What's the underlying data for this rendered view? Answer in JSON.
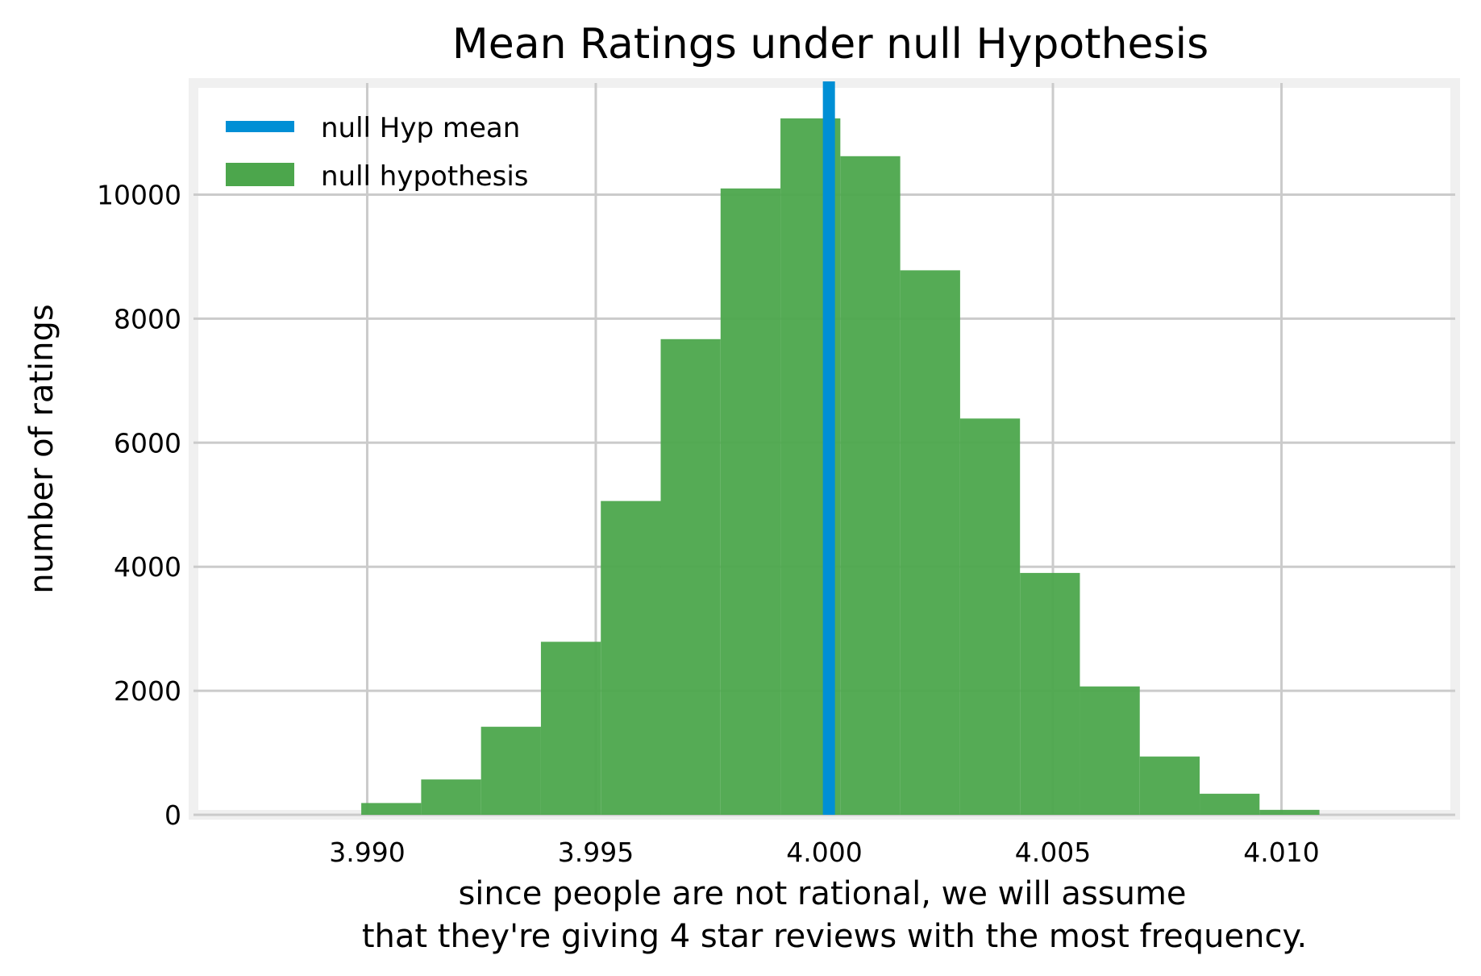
{
  "chart_data": {
    "type": "bar",
    "title": "Mean Ratings under null Hypothesis",
    "xlabel_lines": [
      "since people are not rational, we will assume",
      "that they're giving 4 star reviews with the most frequency."
    ],
    "ylabel": "number of ratings",
    "xlim": [
      3.9862,
      4.0138
    ],
    "ylim": [
      0,
      11800
    ],
    "x_ticks": [
      {
        "value": 3.99,
        "label": "3.990"
      },
      {
        "value": 3.995,
        "label": "3.995"
      },
      {
        "value": 4.0,
        "label": "4.000"
      },
      {
        "value": 4.005,
        "label": "4.005"
      },
      {
        "value": 4.01,
        "label": "4.010"
      }
    ],
    "y_ticks": [
      {
        "value": 0,
        "label": "0"
      },
      {
        "value": 2000,
        "label": "2000"
      },
      {
        "value": 4000,
        "label": "4000"
      },
      {
        "value": 6000,
        "label": "6000"
      },
      {
        "value": 8000,
        "label": "8000"
      },
      {
        "value": 10000,
        "label": "10000"
      }
    ],
    "grid": true,
    "legend_position": "top-left",
    "series": [
      {
        "name": "null hypothesis",
        "kind": "histogram",
        "color": "#4ca64c",
        "bin_edges": [
          3.98987,
          3.99118,
          3.99249,
          3.9938,
          3.99511,
          3.99642,
          3.99773,
          3.99904,
          4.00035,
          4.00166,
          4.00297,
          4.00428,
          4.00559,
          4.0069,
          4.00821,
          4.00952,
          4.01083
        ],
        "values": [
          190,
          570,
          1420,
          2790,
          5060,
          7670,
          10100,
          11230,
          10620,
          8780,
          6390,
          3900,
          2070,
          940,
          340,
          80
        ]
      },
      {
        "name": "null Hyp mean",
        "kind": "vline",
        "color": "#008fd5",
        "x": 4.0001
      }
    ]
  }
}
